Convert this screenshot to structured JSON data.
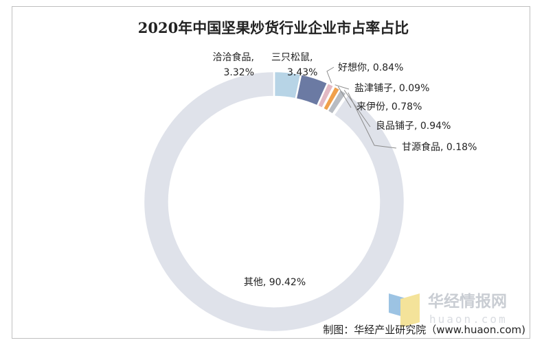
{
  "chart_data": {
    "type": "pie",
    "variant": "donut",
    "title": "2020年中国坚果炒货行业企业市占率占比",
    "slices": [
      {
        "label": "洽洽食品",
        "value": 3.32,
        "value_label": "3.32%",
        "color": "#b7d4e6"
      },
      {
        "label": "三只松鼠",
        "value": 3.43,
        "value_label": "3.43%",
        "color": "#6b7aa3"
      },
      {
        "label": "好想你",
        "value": 0.84,
        "value_label": "0.84%",
        "color": "#e3b9c3"
      },
      {
        "label": "盐津铺子",
        "value": 0.09,
        "value_label": "0.09%",
        "color": "#c98b7a"
      },
      {
        "label": "来伊份",
        "value": 0.78,
        "value_label": "0.78%",
        "color": "#f0a04b"
      },
      {
        "label": "良品铺子",
        "value": 0.94,
        "value_label": "0.94%",
        "color": "#b8bcc2"
      },
      {
        "label": "甘源食品",
        "value": 0.18,
        "value_label": "0.18%",
        "color": "#7e8fa3"
      },
      {
        "label": "其他",
        "value": 90.42,
        "value_label": "90.42%",
        "color": "#dfe2ea"
      }
    ],
    "legend": "none",
    "source": "制图：华经产业研究院（www.huaon.com)"
  },
  "watermark": {
    "cn": "华经情报网",
    "en": "huaon.com",
    "colors": [
      "#9cc3e3",
      "#f4e39a"
    ]
  }
}
